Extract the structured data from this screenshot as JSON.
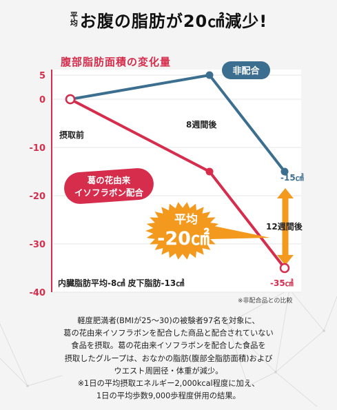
{
  "headline": {
    "prefix": "平均",
    "main": "お腹の脂肪が20㎠減少!"
  },
  "chart_data": {
    "type": "line",
    "title": "腹部脂肪面積の変化量",
    "x": [
      "摂取前",
      "8週間後",
      "12週間後"
    ],
    "y_ticks": [
      "5",
      "0",
      "-10",
      "-20",
      "-30",
      "-40"
    ],
    "ylim": [
      -40,
      5
    ],
    "series": [
      {
        "name": "非配合",
        "values": [
          0,
          5,
          -15
        ],
        "color": "#3c6f8f"
      },
      {
        "name": "葛の花由来イソフラボン配合",
        "values": [
          0,
          -15,
          -35
        ],
        "color": "#d62d4c"
      }
    ],
    "labels": {
      "start": "摂取前",
      "week8": "8週間後",
      "week12": "12週間後",
      "nonblend_end": "-15㎠",
      "blend_end": "-35㎠",
      "series_nonblend": "非配合",
      "series_blend_line1": "葛の花由来",
      "series_blend_line2": "イソフラボン配合",
      "burst_line1": "平均",
      "burst_line2": "-20㎠",
      "bottom_summary": "内臓脂肪平均-8㎠ 皮下脂肪-13㎠",
      "note": "※非配合品との比較"
    },
    "colors": {
      "accent": "#d62d4c",
      "blue": "#3c6f8f",
      "orange": "#f39a1e",
      "burst": "#f39a1e"
    }
  },
  "footer": {
    "lines": [
      "軽度肥満者(BMIが25〜30)の被験者97名を対象に、",
      "葛の花由来イソフラボンを配合した商品と配合されていない",
      "食品を摂取。葛の花由来イソフラボンを配合した食品を",
      "摂取したグループは、おなかの脂肪(腹部全脂肪面積)および",
      "ウエスト周囲径・体重が減少。",
      "※1日の平均摂取エネルギー2,000kcal程度に加え、",
      "1日の平均歩数9,000歩程度併用の結果。"
    ]
  }
}
